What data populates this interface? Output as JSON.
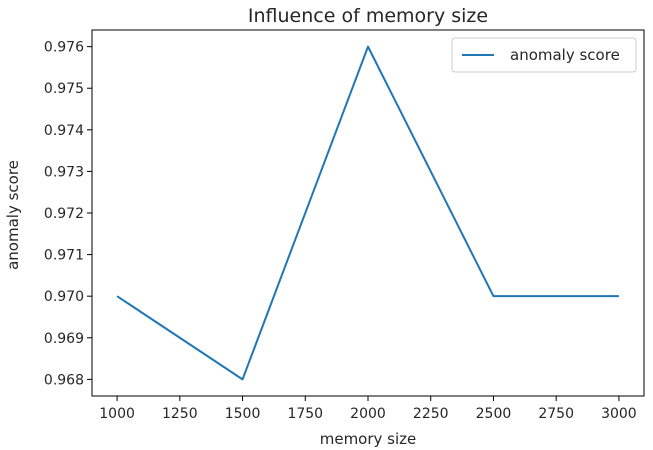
{
  "chart_data": {
    "type": "line",
    "title": "Influence of memory size",
    "xlabel": "memory size",
    "ylabel": "anomaly score",
    "x": [
      1000,
      1500,
      2000,
      2500,
      3000
    ],
    "series": [
      {
        "name": "anomaly score",
        "values": [
          0.97,
          0.968,
          0.976,
          0.97,
          0.97
        ],
        "color": "#1f77b4"
      }
    ],
    "xlim": [
      900,
      3100
    ],
    "ylim": [
      0.9676,
      0.9764
    ],
    "xticks": [
      1000,
      1250,
      1500,
      1750,
      2000,
      2250,
      2500,
      2750,
      3000
    ],
    "xtick_labels": [
      "1000",
      "1250",
      "1500",
      "1750",
      "2000",
      "2250",
      "2500",
      "2750",
      "3000"
    ],
    "yticks": [
      0.968,
      0.969,
      0.97,
      0.971,
      0.972,
      0.973,
      0.974,
      0.975,
      0.976
    ],
    "ytick_labels": [
      "0.968",
      "0.969",
      "0.970",
      "0.971",
      "0.972",
      "0.973",
      "0.974",
      "0.975",
      "0.976"
    ],
    "grid": false,
    "legend_position": "top-right"
  }
}
